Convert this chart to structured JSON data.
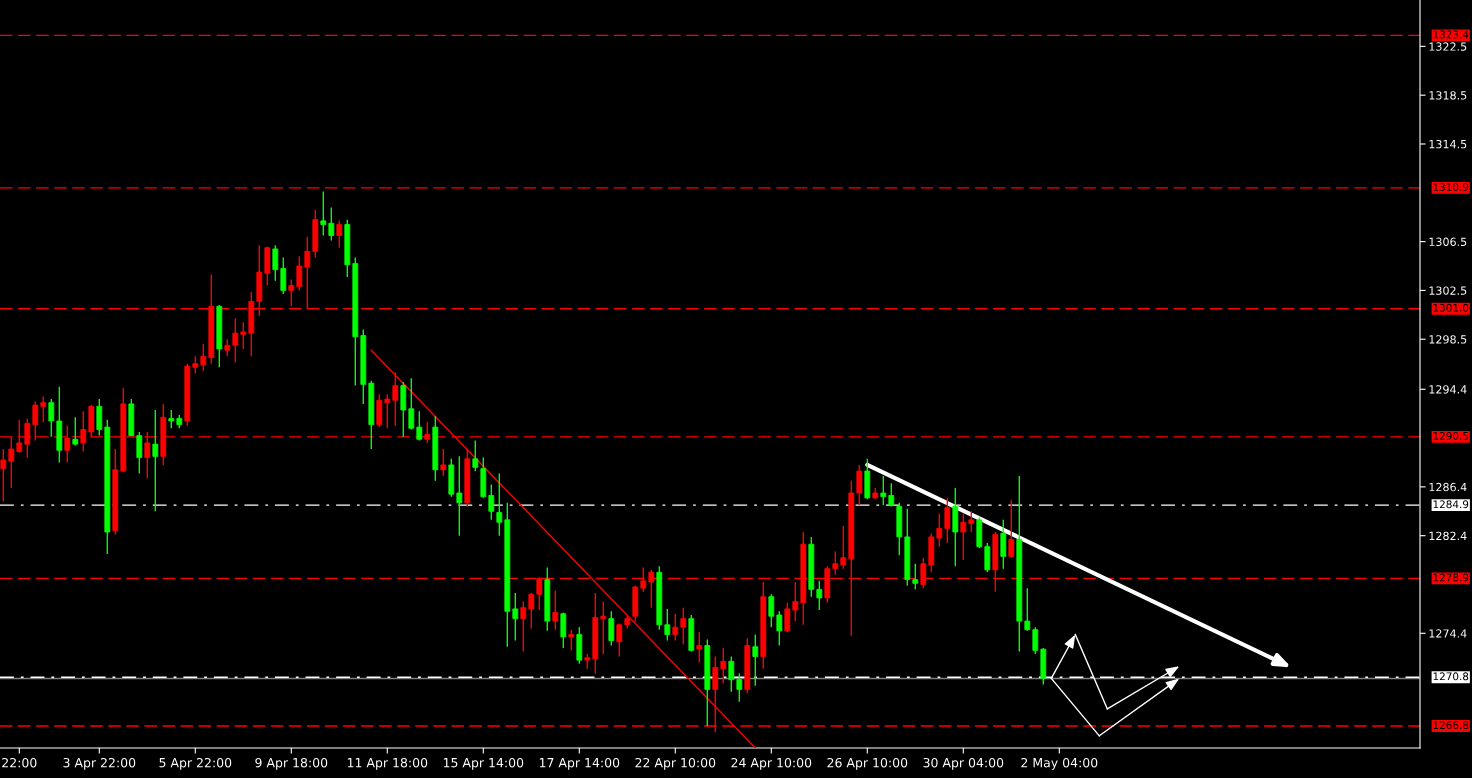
{
  "chart_data": {
    "type": "candlestick",
    "categories": [
      null,
      null,
      "22:00",
      null,
      null,
      null,
      null,
      null,
      null,
      null,
      null,
      null,
      "3 Apr 22:00",
      null,
      null,
      null,
      null,
      null,
      null,
      null,
      null,
      null,
      null,
      null,
      "5 Apr 22:00",
      null,
      null,
      null,
      null,
      null,
      null,
      null,
      null,
      null,
      null,
      null,
      "9 Apr 18:00",
      null,
      null,
      null,
      null,
      null,
      null,
      null,
      null,
      null,
      null,
      null,
      "11 Apr 18:00",
      null,
      null,
      null,
      null,
      null,
      null,
      null,
      null,
      null,
      null,
      null,
      "15 Apr 14:00",
      null,
      null,
      null,
      null,
      null,
      null,
      null,
      null,
      null,
      null,
      null,
      "17 Apr 14:00",
      null,
      null,
      null,
      null,
      null,
      null,
      null,
      null,
      null,
      null,
      null,
      "22 Apr 10:00",
      null,
      null,
      null,
      null,
      null,
      null,
      null,
      null,
      null,
      null,
      null,
      "24 Apr 10:00",
      null,
      null,
      null,
      null,
      null,
      null,
      null,
      null,
      null,
      null,
      null,
      "26 Apr 10:00",
      null,
      null,
      null,
      null,
      null,
      null,
      null,
      null,
      null,
      null,
      null,
      "30 Apr 04:00",
      null,
      null,
      null,
      null,
      null,
      null,
      null,
      null,
      null,
      null,
      null,
      "2 May 04:00",
      null,
      null,
      null,
      null,
      null,
      null,
      null,
      null,
      null,
      null,
      null,
      null,
      null,
      null,
      null,
      null,
      null,
      null,
      null,
      null,
      null,
      null,
      null,
      null,
      null,
      null,
      null,
      null,
      null,
      null,
      null,
      null,
      null,
      null,
      null,
      null,
      null,
      null,
      null,
      null,
      null,
      null,
      null,
      null
    ],
    "ohlc": [
      [
        1287.9,
        1289.5,
        1285.2,
        1288.6
      ],
      [
        1288.5,
        1290.5,
        1286.3,
        1289.5
      ],
      [
        1289.3,
        1291.9,
        1289.2,
        1290.0
      ],
      [
        1289.9,
        1292.0,
        1288.8,
        1291.6
      ],
      [
        1291.5,
        1293.4,
        1290.2,
        1293.1
      ],
      [
        1293.0,
        1293.8,
        1291.7,
        1293.3
      ],
      [
        1293.3,
        1293.6,
        1290.5,
        1291.8
      ],
      [
        1291.8,
        1294.6,
        1288.4,
        1289.4
      ],
      [
        1289.4,
        1291.4,
        1288.4,
        1290.4
      ],
      [
        1290.3,
        1292.1,
        1289.8,
        1289.9
      ],
      [
        1290.0,
        1292.6,
        1289.3,
        1291.1
      ],
      [
        1290.9,
        1293.1,
        1290.5,
        1293.0
      ],
      [
        1293.0,
        1293.6,
        1290.6,
        1291.1
      ],
      [
        1291.3,
        1291.9,
        1280.9,
        1282.7
      ],
      [
        1282.8,
        1289.5,
        1282.5,
        1287.8
      ],
      [
        1287.7,
        1294.5,
        1287.6,
        1293.2
      ],
      [
        1293.2,
        1293.6,
        1290.6,
        1290.6
      ],
      [
        1290.6,
        1290.9,
        1287.5,
        1288.8
      ],
      [
        1288.8,
        1290.9,
        1287.1,
        1290.0
      ],
      [
        1289.9,
        1292.7,
        1284.4,
        1288.9
      ],
      [
        1288.9,
        1293.2,
        1288.2,
        1292.1
      ],
      [
        1292.0,
        1292.7,
        1291.2,
        1291.8
      ],
      [
        1292.0,
        1292.3,
        1291.2,
        1291.5
      ],
      [
        1291.8,
        1296.5,
        1291.4,
        1296.3
      ],
      [
        1296.2,
        1297.1,
        1295.7,
        1296.5
      ],
      [
        1296.4,
        1298.1,
        1295.9,
        1297.1
      ],
      [
        1297.0,
        1303.8,
        1296.5,
        1301.2
      ],
      [
        1301.2,
        1301.3,
        1296.2,
        1297.7
      ],
      [
        1297.6,
        1298.5,
        1297.1,
        1298.0
      ],
      [
        1298.0,
        1300.2,
        1296.6,
        1299.0
      ],
      [
        1298.9,
        1299.9,
        1297.7,
        1299.1
      ],
      [
        1299.0,
        1302.4,
        1297.1,
        1301.6
      ],
      [
        1301.6,
        1306.2,
        1300.4,
        1304.0
      ],
      [
        1303.9,
        1306.1,
        1302.9,
        1306.0
      ],
      [
        1305.9,
        1306.2,
        1303.3,
        1304.2
      ],
      [
        1304.3,
        1305.2,
        1302.2,
        1302.5
      ],
      [
        1302.5,
        1303.4,
        1301.2,
        1302.9
      ],
      [
        1302.8,
        1305.3,
        1302.5,
        1304.5
      ],
      [
        1304.4,
        1306.9,
        1301.0,
        1305.7
      ],
      [
        1305.7,
        1309.1,
        1305.2,
        1308.3
      ],
      [
        1308.2,
        1310.6,
        1307.0,
        1307.9
      ],
      [
        1308.0,
        1309.3,
        1306.6,
        1307.0
      ],
      [
        1307.0,
        1308.2,
        1306.0,
        1307.9
      ],
      [
        1307.9,
        1308.3,
        1303.6,
        1304.6
      ],
      [
        1304.7,
        1305.2,
        1294.7,
        1298.7
      ],
      [
        1298.8,
        1299.3,
        1293.2,
        1294.8
      ],
      [
        1294.9,
        1295.1,
        1289.5,
        1291.5
      ],
      [
        1291.5,
        1294.0,
        1291.3,
        1293.5
      ],
      [
        1293.3,
        1294.0,
        1291.2,
        1293.6
      ],
      [
        1293.5,
        1295.8,
        1291.4,
        1294.7
      ],
      [
        1294.7,
        1295.0,
        1290.5,
        1292.7
      ],
      [
        1292.8,
        1295.3,
        1291.1,
        1291.2
      ],
      [
        1291.3,
        1292.6,
        1290.2,
        1290.3
      ],
      [
        1290.3,
        1291.7,
        1290.0,
        1290.7
      ],
      [
        1291.3,
        1292.2,
        1286.9,
        1287.8
      ],
      [
        1287.8,
        1289.5,
        1287.3,
        1288.2
      ],
      [
        1288.2,
        1288.7,
        1285.6,
        1285.8
      ],
      [
        1285.9,
        1288.9,
        1282.4,
        1285.1
      ],
      [
        1285.1,
        1289.5,
        1284.8,
        1288.7
      ],
      [
        1288.7,
        1290.2,
        1287.7,
        1288.0
      ],
      [
        1287.9,
        1288.8,
        1285.5,
        1285.6
      ],
      [
        1285.7,
        1286.6,
        1283.7,
        1284.4
      ],
      [
        1284.3,
        1287.5,
        1282.4,
        1283.5
      ],
      [
        1283.7,
        1285.1,
        1273.3,
        1276.2
      ],
      [
        1276.4,
        1277.7,
        1273.8,
        1275.6
      ],
      [
        1275.6,
        1277.0,
        1272.9,
        1276.5
      ],
      [
        1276.4,
        1277.7,
        1274.8,
        1277.6
      ],
      [
        1277.6,
        1279.0,
        1276.3,
        1278.9
      ],
      [
        1278.8,
        1279.8,
        1274.6,
        1275.4
      ],
      [
        1275.4,
        1277.9,
        1274.7,
        1276.1
      ],
      [
        1276.0,
        1276.1,
        1273.2,
        1274.1
      ],
      [
        1274.1,
        1274.7,
        1273.0,
        1274.3
      ],
      [
        1274.3,
        1274.9,
        1271.9,
        1272.2
      ],
      [
        1272.2,
        1272.7,
        1271.5,
        1272.4
      ],
      [
        1272.3,
        1277.7,
        1271.1,
        1275.7
      ],
      [
        1275.6,
        1277.0,
        1272.7,
        1275.8
      ],
      [
        1275.6,
        1276.2,
        1273.4,
        1273.8
      ],
      [
        1273.7,
        1275.2,
        1272.5,
        1275.1
      ],
      [
        1275.1,
        1275.9,
        1274.8,
        1275.6
      ],
      [
        1275.8,
        1278.3,
        1275.3,
        1278.2
      ],
      [
        1278.1,
        1279.8,
        1277.8,
        1278.7
      ],
      [
        1278.6,
        1279.6,
        1276.5,
        1279.4
      ],
      [
        1279.4,
        1279.9,
        1274.7,
        1275.1
      ],
      [
        1275.1,
        1276.4,
        1273.8,
        1274.3
      ],
      [
        1274.3,
        1276.0,
        1273.8,
        1274.9
      ],
      [
        1274.9,
        1276.5,
        1273.5,
        1275.6
      ],
      [
        1275.6,
        1275.9,
        1272.9,
        1273.0
      ],
      [
        1273.1,
        1274.5,
        1272.0,
        1273.4
      ],
      [
        1273.4,
        1273.9,
        1266.8,
        1269.8
      ],
      [
        1269.8,
        1272.5,
        1266.3,
        1271.6
      ],
      [
        1271.5,
        1273.2,
        1270.3,
        1272.1
      ],
      [
        1272.1,
        1272.5,
        1269.6,
        1270.6
      ],
      [
        1270.6,
        1271.1,
        1268.8,
        1269.8
      ],
      [
        1269.8,
        1274.0,
        1269.5,
        1273.4
      ],
      [
        1273.3,
        1274.3,
        1270.1,
        1272.5
      ],
      [
        1272.5,
        1278.6,
        1271.5,
        1277.4
      ],
      [
        1277.4,
        1277.6,
        1274.9,
        1275.8
      ],
      [
        1275.9,
        1276.2,
        1273.4,
        1274.6
      ],
      [
        1274.6,
        1276.9,
        1274.5,
        1276.4
      ],
      [
        1276.3,
        1278.6,
        1275.4,
        1277.0
      ],
      [
        1276.9,
        1282.7,
        1275.1,
        1281.7
      ],
      [
        1281.7,
        1282.3,
        1277.4,
        1278.0
      ],
      [
        1278.0,
        1278.7,
        1276.3,
        1277.3
      ],
      [
        1277.3,
        1279.9,
        1276.9,
        1279.7
      ],
      [
        1279.7,
        1281.1,
        1279.2,
        1280.1
      ],
      [
        1280.0,
        1283.2,
        1279.7,
        1280.6
      ],
      [
        1280.5,
        1286.9,
        1274.2,
        1285.9
      ],
      [
        1285.9,
        1288.2,
        1284.9,
        1287.7
      ],
      [
        1287.7,
        1288.7,
        1285.4,
        1285.5
      ],
      [
        1285.5,
        1286.3,
        1285.4,
        1285.9
      ],
      [
        1285.9,
        1287.3,
        1284.9,
        1285.6
      ],
      [
        1285.7,
        1286.7,
        1284.8,
        1284.9
      ],
      [
        1284.8,
        1285.1,
        1280.8,
        1282.3
      ],
      [
        1282.3,
        1284.6,
        1278.3,
        1278.8
      ],
      [
        1278.8,
        1280.1,
        1278.0,
        1278.5
      ],
      [
        1278.4,
        1280.6,
        1278.1,
        1280.1
      ],
      [
        1280.0,
        1282.6,
        1279.4,
        1282.3
      ],
      [
        1282.2,
        1284.2,
        1281.5,
        1283.0
      ],
      [
        1283.0,
        1285.5,
        1281.8,
        1284.7
      ],
      [
        1284.8,
        1286.3,
        1279.9,
        1282.7
      ],
      [
        1282.7,
        1284.2,
        1280.4,
        1283.5
      ],
      [
        1283.4,
        1284.4,
        1282.7,
        1283.7
      ],
      [
        1283.7,
        1283.9,
        1281.4,
        1281.5
      ],
      [
        1281.5,
        1281.8,
        1279.4,
        1279.6
      ],
      [
        1279.6,
        1282.7,
        1277.8,
        1282.5
      ],
      [
        1282.6,
        1283.7,
        1279.7,
        1280.7
      ],
      [
        1280.7,
        1285.3,
        1280.6,
        1282.1
      ],
      [
        1282.1,
        1287.3,
        1272.9,
        1275.4
      ],
      [
        1275.4,
        1278.1,
        1274.6,
        1274.7
      ],
      [
        1274.7,
        1274.9,
        1272.7,
        1273.0
      ],
      [
        1273.1,
        1273.2,
        1270.2,
        1270.7
      ],
      null,
      null,
      null,
      null,
      null,
      null,
      null,
      null,
      null,
      null,
      null,
      null,
      null,
      null,
      null,
      null,
      null,
      null,
      null,
      null,
      null,
      null,
      null,
      null,
      null,
      null,
      null,
      null,
      null,
      null,
      null,
      null,
      null,
      null,
      null,
      null,
      null,
      null,
      null,
      null,
      null,
      null,
      null,
      null,
      null,
      null
    ],
    "colors": [
      "#ff0000",
      "#ff0000",
      "#ff0000",
      "#ff0000",
      "#ff0000",
      "#ff0000",
      "#00ff00",
      "#00ff00",
      "#ff0000",
      "#00ff00",
      "#ff0000",
      "#ff0000",
      "#00ff00",
      "#00ff00",
      "#ff0000",
      "#ff0000",
      "#00ff00",
      "#00ff00",
      "#ff0000",
      "#00ff00",
      "#ff0000",
      "#00ff00",
      "#00ff00",
      "#ff0000",
      "#ff0000",
      "#ff0000",
      "#ff0000",
      "#00ff00",
      "#ff0000",
      "#ff0000",
      "#ff0000",
      "#ff0000",
      "#ff0000",
      "#ff0000",
      "#00ff00",
      "#00ff00",
      "#ff0000",
      "#ff0000",
      "#ff0000",
      "#ff0000",
      "#00ff00",
      "#00ff00",
      "#ff0000",
      "#00ff00",
      "#00ff00",
      "#00ff00",
      "#00ff00",
      "#ff0000",
      "#ff0000",
      "#ff0000",
      "#00ff00",
      "#00ff00",
      "#00ff00",
      "#ff0000",
      "#00ff00",
      "#ff0000",
      "#00ff00",
      "#00ff00",
      "#ff0000",
      "#00ff00",
      "#00ff00",
      "#00ff00",
      "#00ff00",
      "#00ff00",
      "#00ff00",
      "#ff0000",
      "#ff0000",
      "#ff0000",
      "#00ff00",
      "#ff0000",
      "#00ff00",
      "#ff0000",
      "#00ff00",
      "#ff0000",
      "#ff0000",
      "#ff0000",
      "#00ff00",
      "#ff0000",
      "#ff0000",
      "#ff0000",
      "#ff0000",
      "#ff0000",
      "#00ff00",
      "#00ff00",
      "#ff0000",
      "#ff0000",
      "#00ff00",
      "#ff0000",
      "#00ff00",
      "#ff0000",
      "#ff0000",
      "#00ff00",
      "#00ff00",
      "#ff0000",
      "#00ff00",
      "#ff0000",
      "#00ff00",
      "#00ff00",
      "#ff0000",
      "#ff0000",
      "#ff0000",
      "#00ff00",
      "#00ff00",
      "#ff0000",
      "#ff0000",
      "#ff0000",
      "#ff0000",
      "#ff0000",
      "#00ff00",
      "#ff0000",
      "#00ff00",
      "#00ff00",
      "#00ff00",
      "#00ff00",
      "#00ff00",
      "#ff0000",
      "#ff0000",
      "#ff0000",
      "#ff0000",
      "#00ff00",
      "#ff0000",
      "#ff0000",
      "#00ff00",
      "#00ff00",
      "#ff0000",
      "#00ff00",
      "#ff0000",
      "#00ff00",
      "#00ff00",
      "#00ff00",
      "#00ff00",
      null,
      null,
      null,
      null,
      null,
      null,
      null,
      null,
      null,
      null,
      null,
      null,
      null,
      null,
      null,
      null,
      null,
      null,
      null,
      null,
      null,
      null,
      null,
      null,
      null,
      null,
      null,
      null,
      null,
      null,
      null,
      null,
      null,
      null,
      null,
      null,
      null,
      null,
      null,
      null,
      null,
      null,
      null,
      null,
      null,
      null
    ],
    "series": [
      {
        "type": "line",
        "color": "#ff0000",
        "marker": "none",
        "values": [
          null,
          null,
          null,
          null,
          null,
          null,
          null,
          null,
          null,
          null,
          null,
          null,
          null,
          null,
          null,
          null,
          null,
          null,
          null,
          null,
          null,
          null,
          null,
          null,
          null,
          null,
          null,
          null,
          null,
          null,
          null,
          null,
          null,
          null,
          null,
          null,
          null,
          null,
          null,
          null,
          null,
          null,
          null,
          null,
          null,
          null,
          1297.6,
          null,
          null,
          null,
          null,
          null,
          null,
          null,
          null,
          null,
          null,
          null,
          null,
          null,
          null,
          null,
          null,
          null,
          null,
          null,
          null,
          null,
          null,
          null,
          null,
          null,
          null,
          null,
          null,
          null,
          null,
          null,
          null,
          null,
          null,
          null,
          null,
          null,
          null,
          null,
          null,
          null,
          null,
          null,
          null,
          null,
          null,
          null,
          1265.0,
          null,
          null,
          null,
          null,
          null,
          null,
          null,
          null,
          null,
          null,
          null,
          null,
          null,
          null,
          null,
          null,
          null,
          null,
          null,
          null,
          null,
          null,
          null,
          null,
          null,
          null,
          null,
          null,
          null,
          null,
          null,
          null,
          null,
          null,
          null,
          null,
          null,
          null,
          null,
          null,
          null,
          null,
          null,
          null,
          null,
          null,
          null,
          null,
          null,
          null,
          null,
          null,
          null,
          null,
          null,
          null,
          null,
          null,
          null,
          null,
          null,
          null,
          null,
          null,
          null,
          null,
          null,
          null,
          null,
          null,
          null,
          null,
          null,
          null,
          null,
          null,
          null,
          null,
          null,
          null,
          null,
          null
        ]
      },
      {
        "type": "line",
        "color": "#ffffff",
        "values": [
          null,
          null,
          null,
          null,
          null,
          null,
          null,
          null,
          null,
          null,
          null,
          null,
          null,
          null,
          null,
          null,
          null,
          null,
          null,
          null,
          null,
          null,
          null,
          null,
          null,
          null,
          null,
          null,
          null,
          null,
          null,
          null,
          null,
          null,
          null,
          null,
          null,
          null,
          null,
          null,
          null,
          null,
          null,
          null,
          null,
          null,
          null,
          null,
          null,
          null,
          null,
          null,
          null,
          null,
          null,
          null,
          null,
          null,
          null,
          null,
          null,
          null,
          null,
          null,
          null,
          null,
          null,
          null,
          null,
          null,
          null,
          null,
          null,
          null,
          null,
          null,
          null,
          null,
          null,
          null,
          null,
          null,
          null,
          null,
          null,
          null,
          null,
          null,
          null,
          null,
          null,
          null,
          null,
          null,
          null,
          null,
          null,
          null,
          null,
          null,
          null,
          null,
          null,
          null,
          null,
          null,
          null,
          null,
          1288.2,
          null,
          null,
          null,
          null,
          null,
          null,
          null,
          null,
          null,
          null,
          null,
          null,
          null,
          null,
          null,
          null,
          null,
          null,
          null,
          null,
          null,
          null,
          null,
          null,
          null,
          null,
          null,
          null,
          null,
          null,
          null,
          null,
          null,
          null,
          null,
          null,
          null,
          null,
          null,
          null,
          null,
          null,
          null,
          null,
          null,
          null,
          null,
          null,
          null,
          null,
          null,
          null,
          1271.6,
          null,
          null,
          null,
          null,
          null,
          null,
          null,
          null,
          null,
          null,
          null,
          null,
          null,
          null,
          null
        ]
      },
      {
        "type": "line",
        "color": "#ffffff",
        "values": [
          null,
          null,
          null,
          null,
          null,
          null,
          null,
          null,
          null,
          null,
          null,
          null,
          null,
          null,
          null,
          null,
          null,
          null,
          null,
          null,
          null,
          null,
          null,
          null,
          null,
          null,
          null,
          null,
          null,
          null,
          null,
          null,
          null,
          null,
          null,
          null,
          null,
          null,
          null,
          null,
          null,
          null,
          null,
          null,
          null,
          null,
          null,
          null,
          null,
          null,
          null,
          null,
          null,
          null,
          null,
          null,
          null,
          null,
          null,
          null,
          null,
          null,
          null,
          null,
          null,
          null,
          null,
          null,
          null,
          null,
          null,
          null,
          null,
          null,
          null,
          null,
          null,
          null,
          null,
          null,
          null,
          null,
          null,
          null,
          null,
          null,
          null,
          null,
          null,
          null,
          null,
          null,
          null,
          null,
          null,
          null,
          null,
          null,
          null,
          null,
          null,
          null,
          null,
          null,
          null,
          null,
          null,
          null,
          null,
          null,
          null,
          null,
          null,
          null,
          null,
          null,
          null,
          null,
          null,
          null,
          null,
          null,
          null,
          null,
          null,
          null,
          null,
          null,
          null,
          null,
          null,
          1270.7,
          null,
          null,
          1274.3,
          null,
          null,
          null,
          null,
          null,
          null,
          null,
          null,
          null,
          null,
          null,
          null,
          null,
          null,
          null,
          null,
          null,
          null,
          null,
          null,
          null,
          null,
          null,
          null,
          null,
          null,
          null,
          null,
          null,
          null,
          null,
          null,
          null,
          null,
          null,
          null,
          null,
          null,
          null,
          null,
          null,
          null
        ]
      },
      {
        "type": "line",
        "color": "#ffffff",
        "values": [
          null,
          null,
          null,
          null,
          null,
          null,
          null,
          null,
          null,
          null,
          null,
          null,
          null,
          null,
          null,
          null,
          null,
          null,
          null,
          null,
          null,
          null,
          null,
          null,
          null,
          null,
          null,
          null,
          null,
          null,
          null,
          null,
          null,
          null,
          null,
          null,
          null,
          null,
          null,
          null,
          null,
          null,
          null,
          null,
          null,
          null,
          null,
          null,
          null,
          null,
          null,
          null,
          null,
          null,
          null,
          null,
          null,
          null,
          null,
          null,
          null,
          null,
          null,
          null,
          null,
          null,
          null,
          null,
          null,
          null,
          null,
          null,
          null,
          null,
          null,
          null,
          null,
          null,
          null,
          null,
          null,
          null,
          null,
          null,
          null,
          null,
          null,
          null,
          null,
          null,
          null,
          null,
          null,
          null,
          null,
          null,
          null,
          null,
          null,
          null,
          null,
          null,
          null,
          null,
          null,
          null,
          null,
          null,
          null,
          null,
          null,
          null,
          null,
          null,
          null,
          null,
          null,
          null,
          null,
          null,
          null,
          null,
          null,
          null,
          null,
          null,
          null,
          null,
          null,
          null,
          null,
          null,
          null,
          null,
          1274.3,
          null,
          null,
          null,
          1268.2,
          null,
          null,
          null,
          null,
          null,
          null,
          null,
          null,
          1271.7,
          null,
          null,
          null,
          null,
          null,
          null,
          null,
          null,
          null,
          null,
          null,
          null,
          null,
          null,
          null,
          null,
          null,
          null,
          null,
          null,
          null,
          null,
          null,
          null,
          null,
          null,
          null,
          null,
          null
        ]
      },
      {
        "type": "line",
        "color": "#ffffff",
        "values": [
          null,
          null,
          null,
          null,
          null,
          null,
          null,
          null,
          null,
          null,
          null,
          null,
          null,
          null,
          null,
          null,
          null,
          null,
          null,
          null,
          null,
          null,
          null,
          null,
          null,
          null,
          null,
          null,
          null,
          null,
          null,
          null,
          null,
          null,
          null,
          null,
          null,
          null,
          null,
          null,
          null,
          null,
          null,
          null,
          null,
          null,
          null,
          null,
          null,
          null,
          null,
          null,
          null,
          null,
          null,
          null,
          null,
          null,
          null,
          null,
          null,
          null,
          null,
          null,
          null,
          null,
          null,
          null,
          null,
          null,
          null,
          null,
          null,
          null,
          null,
          null,
          null,
          null,
          null,
          null,
          null,
          null,
          null,
          null,
          null,
          null,
          null,
          null,
          null,
          null,
          null,
          null,
          null,
          null,
          null,
          null,
          null,
          null,
          null,
          null,
          null,
          null,
          null,
          null,
          null,
          null,
          null,
          null,
          null,
          null,
          null,
          null,
          null,
          null,
          null,
          null,
          null,
          null,
          null,
          null,
          null,
          null,
          null,
          null,
          null,
          null,
          null,
          null,
          null,
          null,
          null,
          1270.7,
          null,
          null,
          null,
          null,
          null,
          1266.0,
          null,
          null,
          null,
          null,
          null,
          null,
          null,
          null,
          null,
          1270.7,
          null,
          null,
          null,
          null,
          null,
          null,
          null,
          null,
          null,
          null,
          null,
          null,
          null,
          null,
          null,
          null,
          null,
          null,
          null,
          null,
          null,
          null,
          null,
          null,
          null,
          null,
          null,
          null,
          null
        ]
      }
    ],
    "ylim": [
      1265.0,
      1326.3
    ],
    "yticks": [
      1322.5,
      1318.5,
      1314.5,
      1306.5,
      1302.5,
      1298.5,
      1294.4,
      1286.4,
      1282.4,
      1274.4
    ],
    "ref_lines": [
      {
        "axis": "y",
        "value": 1323.4,
        "label": "1323.4",
        "color": "#ff0000",
        "line_style": "dashed"
      },
      {
        "axis": "y",
        "value": 1310.9,
        "label": "1310.9",
        "color": "#ff0000",
        "line_style": "dashed"
      },
      {
        "axis": "y",
        "value": 1301.0,
        "label": "1301.0",
        "color": "#ff0000",
        "line_style": "dashed"
      },
      {
        "axis": "y",
        "value": 1290.5,
        "label": "1290.5",
        "color": "#ff0000",
        "line_style": "dashed"
      },
      {
        "axis": "y",
        "value": 1284.9,
        "label": "1284.9",
        "color": "#ffffff",
        "line_style": "dashdot"
      },
      {
        "axis": "y",
        "value": 1278.9,
        "label": "1278.9",
        "color": "#ff0000",
        "line_style": "dashed"
      },
      {
        "axis": "y",
        "value": 1270.7,
        "color": "#808080",
        "line_style": "solid"
      },
      {
        "axis": "y",
        "value": 1270.8,
        "label": "1270.8",
        "color": "#ffffff",
        "line_style": "dashdot"
      },
      {
        "axis": "y",
        "value": 1266.8,
        "label": "1266.8",
        "color": "#ff0000",
        "line_style": "dashed"
      }
    ],
    "grid": false,
    "legend": false
  }
}
